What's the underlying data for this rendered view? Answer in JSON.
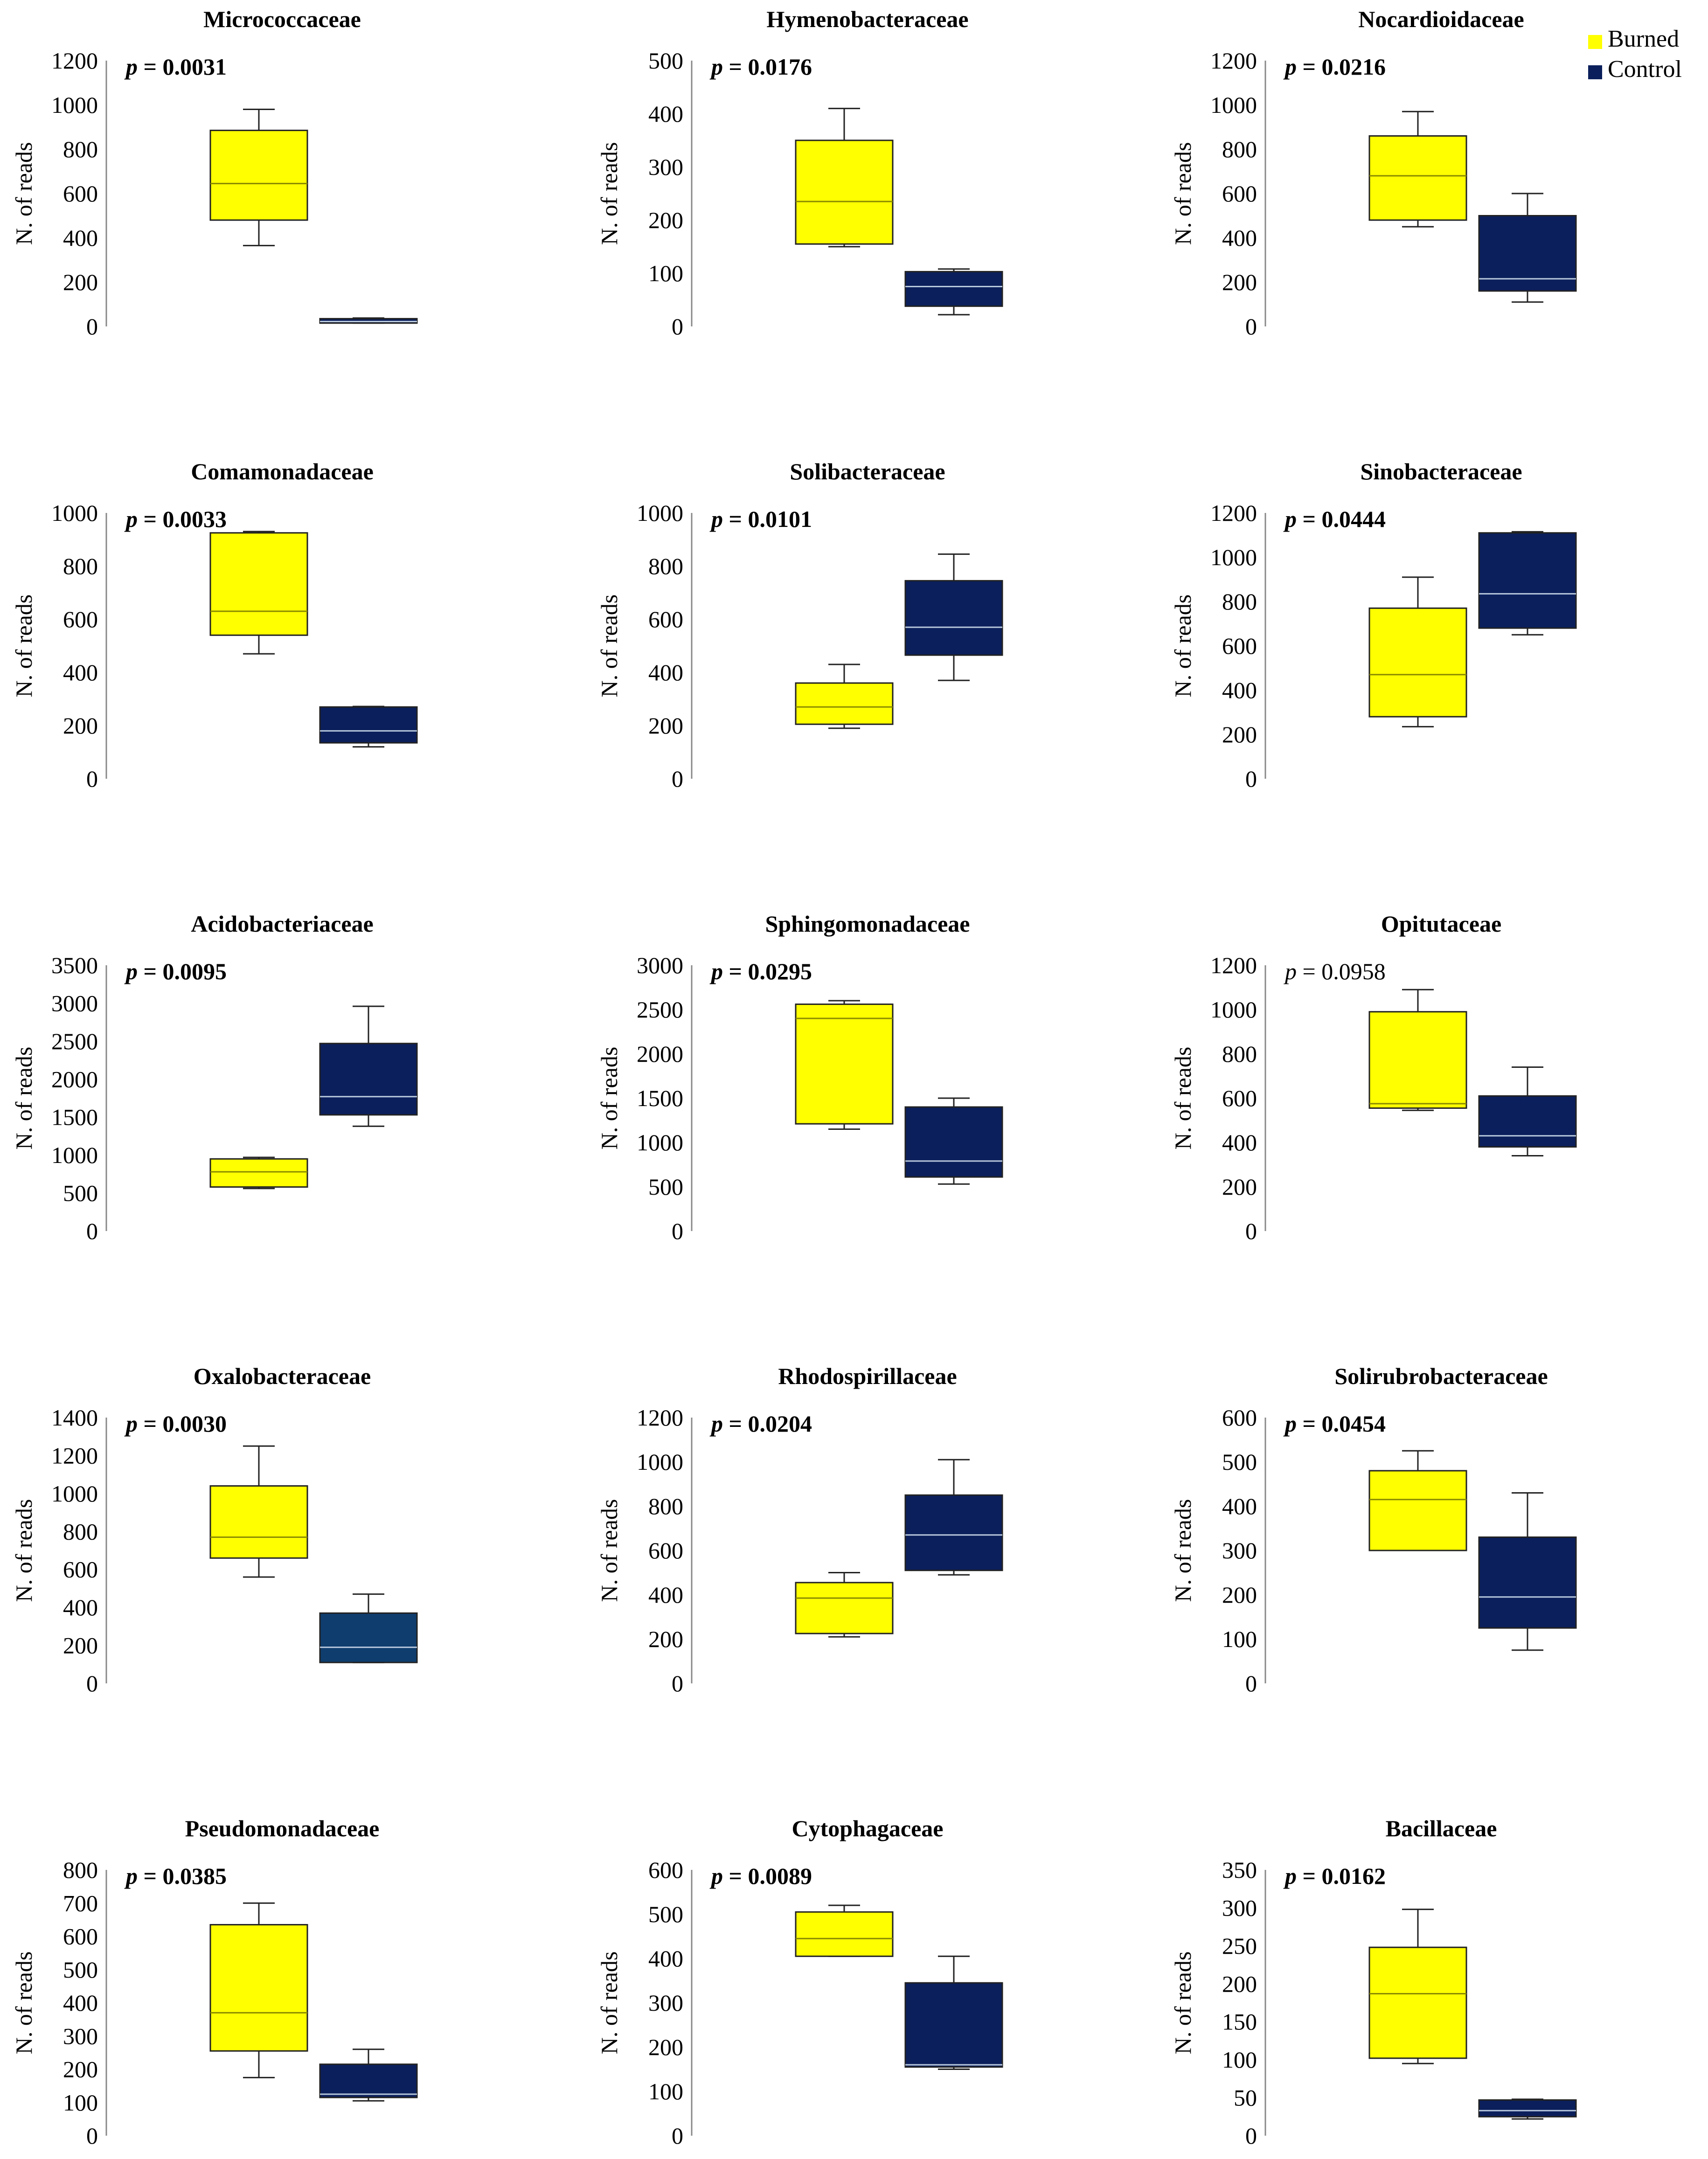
{
  "legend": [
    {
      "label": "Burned",
      "color": "#ffff00"
    },
    {
      "label": "Control",
      "color": "#0b1f5c"
    }
  ],
  "colors": {
    "burned": "#ffff00",
    "control": "#0b1f5c",
    "control_alt": "#0e3d6e",
    "median_on_burned": "#8a8a00",
    "median_on_control": "#b8c8dc"
  },
  "chart_data": [
    {
      "type": "box",
      "title": "Micrococcaceae",
      "ylabel": "N. of reads",
      "pvalue": "p = 0.0031",
      "significant": true,
      "ylim": [
        0,
        1200
      ],
      "yticks": [
        0,
        200,
        400,
        600,
        800,
        1000,
        1200
      ],
      "groups": [
        {
          "name": "Burned",
          "whisker_low": 365,
          "q1": 480,
          "median": 645,
          "q3": 885,
          "whisker_high": 980
        },
        {
          "name": "Control",
          "whisker_low": 15,
          "q1": 15,
          "median": 22,
          "q3": 35,
          "whisker_high": 38
        }
      ]
    },
    {
      "type": "box",
      "title": "Hymenobacteraceae",
      "ylabel": "N. of reads",
      "pvalue": "p = 0.0176",
      "significant": true,
      "ylim": [
        0,
        500
      ],
      "yticks": [
        0,
        100,
        200,
        300,
        400,
        500
      ],
      "groups": [
        {
          "name": "Burned",
          "whisker_low": 150,
          "q1": 155,
          "median": 235,
          "q3": 350,
          "whisker_high": 410
        },
        {
          "name": "Control",
          "whisker_low": 22,
          "q1": 38,
          "median": 75,
          "q3": 103,
          "whisker_high": 108
        }
      ]
    },
    {
      "type": "box",
      "title": "Nocardioidaceae",
      "ylabel": "N. of reads",
      "pvalue": "p = 0.0216",
      "significant": true,
      "ylim": [
        0,
        1200
      ],
      "yticks": [
        0,
        200,
        400,
        600,
        800,
        1000,
        1200
      ],
      "groups": [
        {
          "name": "Burned",
          "whisker_low": 450,
          "q1": 480,
          "median": 680,
          "q3": 860,
          "whisker_high": 970
        },
        {
          "name": "Control",
          "whisker_low": 110,
          "q1": 160,
          "median": 215,
          "q3": 500,
          "whisker_high": 600
        }
      ]
    },
    {
      "type": "box",
      "title": "Comamonadaceae",
      "ylabel": "N. of reads",
      "pvalue": "p = 0.0033",
      "significant": true,
      "ylim": [
        0,
        1000
      ],
      "yticks": [
        0,
        200,
        400,
        600,
        800,
        1000
      ],
      "groups": [
        {
          "name": "Burned",
          "whisker_low": 470,
          "q1": 540,
          "median": 630,
          "q3": 925,
          "whisker_high": 930
        },
        {
          "name": "Control",
          "whisker_low": 120,
          "q1": 135,
          "median": 180,
          "q3": 270,
          "whisker_high": 272
        }
      ]
    },
    {
      "type": "box",
      "title": "Solibacteraceae",
      "ylabel": "N. of reads",
      "pvalue": "p = 0.0101",
      "significant": true,
      "ylim": [
        0,
        1000
      ],
      "yticks": [
        0,
        200,
        400,
        600,
        800,
        1000
      ],
      "groups": [
        {
          "name": "Burned",
          "whisker_low": 190,
          "q1": 205,
          "median": 270,
          "q3": 360,
          "whisker_high": 430
        },
        {
          "name": "Control",
          "whisker_low": 370,
          "q1": 465,
          "median": 570,
          "q3": 745,
          "whisker_high": 845
        }
      ]
    },
    {
      "type": "box",
      "title": "Sinobacteraceae",
      "ylabel": "N. of reads",
      "pvalue": "p = 0.0444",
      "significant": true,
      "ylim": [
        0,
        1200
      ],
      "yticks": [
        0,
        200,
        400,
        600,
        800,
        1000,
        1200
      ],
      "groups": [
        {
          "name": "Burned",
          "whisker_low": 235,
          "q1": 280,
          "median": 470,
          "q3": 770,
          "whisker_high": 910
        },
        {
          "name": "Control",
          "whisker_low": 650,
          "q1": 680,
          "median": 835,
          "q3": 1110,
          "whisker_high": 1115
        }
      ]
    },
    {
      "type": "box",
      "title": "Acidobacteriaceae",
      "ylabel": "N. of reads",
      "pvalue": "p = 0.0095",
      "significant": true,
      "ylim": [
        0,
        3500
      ],
      "yticks": [
        0,
        500,
        1000,
        1500,
        2000,
        2500,
        3000,
        3500
      ],
      "groups": [
        {
          "name": "Burned",
          "whisker_low": 560,
          "q1": 580,
          "median": 780,
          "q3": 950,
          "whisker_high": 970
        },
        {
          "name": "Control",
          "whisker_low": 1380,
          "q1": 1530,
          "median": 1770,
          "q3": 2470,
          "whisker_high": 2960
        }
      ]
    },
    {
      "type": "box",
      "title": "Sphingomonadaceae",
      "ylabel": "N. of reads",
      "pvalue": "p = 0.0295",
      "significant": true,
      "ylim": [
        0,
        3000
      ],
      "yticks": [
        0,
        500,
        1000,
        1500,
        2000,
        2500,
        3000
      ],
      "groups": [
        {
          "name": "Burned",
          "whisker_low": 1150,
          "q1": 1210,
          "median": 2400,
          "q3": 2560,
          "whisker_high": 2600
        },
        {
          "name": "Control",
          "whisker_low": 530,
          "q1": 610,
          "median": 790,
          "q3": 1400,
          "whisker_high": 1500
        }
      ]
    },
    {
      "type": "box",
      "title": "Opitutaceae",
      "ylabel": "N. of reads",
      "pvalue": "p = 0.0958",
      "significant": false,
      "ylim": [
        0,
        1200
      ],
      "yticks": [
        0,
        200,
        400,
        600,
        800,
        1000,
        1200
      ],
      "groups": [
        {
          "name": "Burned",
          "whisker_low": 545,
          "q1": 555,
          "median": 575,
          "q3": 990,
          "whisker_high": 1090
        },
        {
          "name": "Control",
          "whisker_low": 340,
          "q1": 380,
          "median": 430,
          "q3": 610,
          "whisker_high": 740
        }
      ]
    },
    {
      "type": "box",
      "title": "Oxalobacteraceae",
      "ylabel": "N. of reads",
      "pvalue": "p = 0.0030",
      "significant": true,
      "ylim": [
        0,
        1400
      ],
      "yticks": [
        0,
        200,
        400,
        600,
        800,
        1000,
        1200,
        1400
      ],
      "groups": [
        {
          "name": "Burned",
          "whisker_low": 560,
          "q1": 660,
          "median": 770,
          "q3": 1040,
          "whisker_high": 1250
        },
        {
          "name": "Control",
          "whisker_low": 110,
          "q1": 110,
          "median": 190,
          "q3": 370,
          "whisker_high": 470
        }
      ]
    },
    {
      "type": "box",
      "title": "Rhodospirillaceae",
      "ylabel": "N. of reads",
      "pvalue": "p = 0.0204",
      "significant": true,
      "ylim": [
        0,
        1200
      ],
      "yticks": [
        0,
        200,
        400,
        600,
        800,
        1000,
        1200
      ],
      "groups": [
        {
          "name": "Burned",
          "whisker_low": 210,
          "q1": 225,
          "median": 385,
          "q3": 455,
          "whisker_high": 500
        },
        {
          "name": "Control",
          "whisker_low": 490,
          "q1": 510,
          "median": 670,
          "q3": 850,
          "whisker_high": 1010
        }
      ]
    },
    {
      "type": "box",
      "title": "Solirubrobacteraceae",
      "ylabel": "N. of reads",
      "pvalue": "p = 0.0454",
      "significant": true,
      "ylim": [
        0,
        600
      ],
      "yticks": [
        0,
        100,
        200,
        300,
        400,
        500,
        600
      ],
      "groups": [
        {
          "name": "Burned",
          "whisker_low": 300,
          "q1": 300,
          "median": 415,
          "q3": 480,
          "whisker_high": 525
        },
        {
          "name": "Control",
          "whisker_low": 75,
          "q1": 125,
          "median": 195,
          "q3": 330,
          "whisker_high": 430
        }
      ]
    },
    {
      "type": "box",
      "title": "Pseudomonadaceae",
      "ylabel": "N. of reads",
      "pvalue": "p = 0.0385",
      "significant": true,
      "ylim": [
        0,
        800
      ],
      "yticks": [
        0,
        100,
        200,
        300,
        400,
        500,
        600,
        700,
        800
      ],
      "groups": [
        {
          "name": "Burned",
          "whisker_low": 175,
          "q1": 255,
          "median": 370,
          "q3": 635,
          "whisker_high": 700
        },
        {
          "name": "Control",
          "whisker_low": 105,
          "q1": 115,
          "median": 125,
          "q3": 215,
          "whisker_high": 260
        }
      ]
    },
    {
      "type": "box",
      "title": "Cytophagaceae",
      "ylabel": "N. of reads",
      "pvalue": "p = 0.0089",
      "significant": true,
      "ylim": [
        0,
        600
      ],
      "yticks": [
        0,
        100,
        200,
        300,
        400,
        500,
        600
      ],
      "groups": [
        {
          "name": "Burned",
          "whisker_low": 405,
          "q1": 405,
          "median": 445,
          "q3": 505,
          "whisker_high": 520
        },
        {
          "name": "Control",
          "whisker_low": 150,
          "q1": 155,
          "median": 160,
          "q3": 345,
          "whisker_high": 405
        }
      ]
    },
    {
      "type": "box",
      "title": "Bacillaceae",
      "ylabel": "N. of reads",
      "pvalue": "p = 0.0162",
      "significant": true,
      "ylim": [
        0,
        350
      ],
      "yticks": [
        0,
        50,
        100,
        150,
        200,
        250,
        300,
        350
      ],
      "groups": [
        {
          "name": "Burned",
          "whisker_low": 95,
          "q1": 102,
          "median": 187,
          "q3": 248,
          "whisker_high": 298
        },
        {
          "name": "Control",
          "whisker_low": 22,
          "q1": 25,
          "median": 33,
          "q3": 47,
          "whisker_high": 48
        }
      ]
    }
  ]
}
